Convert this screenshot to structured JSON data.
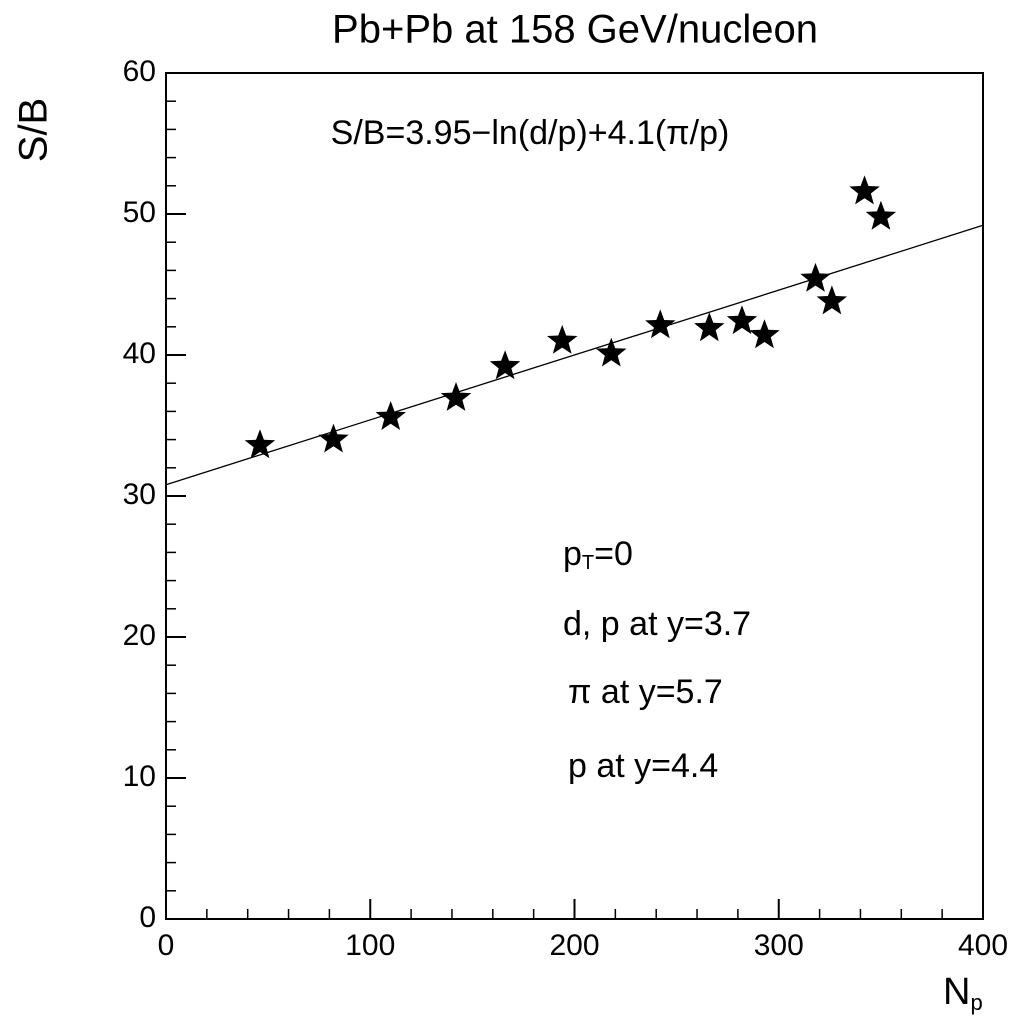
{
  "chart_data": {
    "type": "scatter",
    "title": "Pb+Pb at 158 GeV/nucleon",
    "ylabel": "S/B",
    "xlabel": {
      "main": "N",
      "sub": "p"
    },
    "xlim": [
      0,
      400
    ],
    "ylim": [
      0,
      60
    ],
    "xticks": [
      0,
      100,
      200,
      300,
      400
    ],
    "yticks": [
      0,
      10,
      20,
      30,
      40,
      50,
      60
    ],
    "xminorticks": [
      20,
      40,
      60,
      80,
      120,
      140,
      160,
      180,
      220,
      240,
      260,
      280,
      320,
      340,
      360,
      380
    ],
    "yminorticks": [
      2,
      4,
      6,
      8,
      12,
      14,
      16,
      18,
      22,
      24,
      26,
      28,
      32,
      34,
      36,
      38,
      42,
      44,
      46,
      48,
      52,
      54,
      56,
      58
    ],
    "series": [
      {
        "type": "scatter",
        "marker": "star",
        "color": "#000000",
        "x": [
          46,
          82,
          110,
          142,
          166,
          194,
          218,
          242,
          266,
          282,
          293,
          318,
          326,
          342,
          350
        ],
        "values": [
          33.6,
          34.0,
          35.6,
          36.95,
          39.2,
          41.0,
          40.1,
          42.1,
          41.9,
          42.4,
          41.4,
          45.4,
          43.8,
          51.6,
          49.8
        ]
      },
      {
        "type": "line",
        "color": "#000000",
        "x": [
          0,
          400
        ],
        "values": [
          30.8,
          49.2
        ]
      }
    ],
    "annotations": [
      {
        "text": "S/B=3.95−ln(d/p)+4.1(π/p)"
      },
      {
        "text": "p",
        "sub": "T",
        "rest": "=0"
      },
      {
        "text": "d, p at y=3.7"
      },
      {
        "text": "π at y=5.7"
      },
      {
        "text": "p at y=4.4"
      }
    ]
  }
}
